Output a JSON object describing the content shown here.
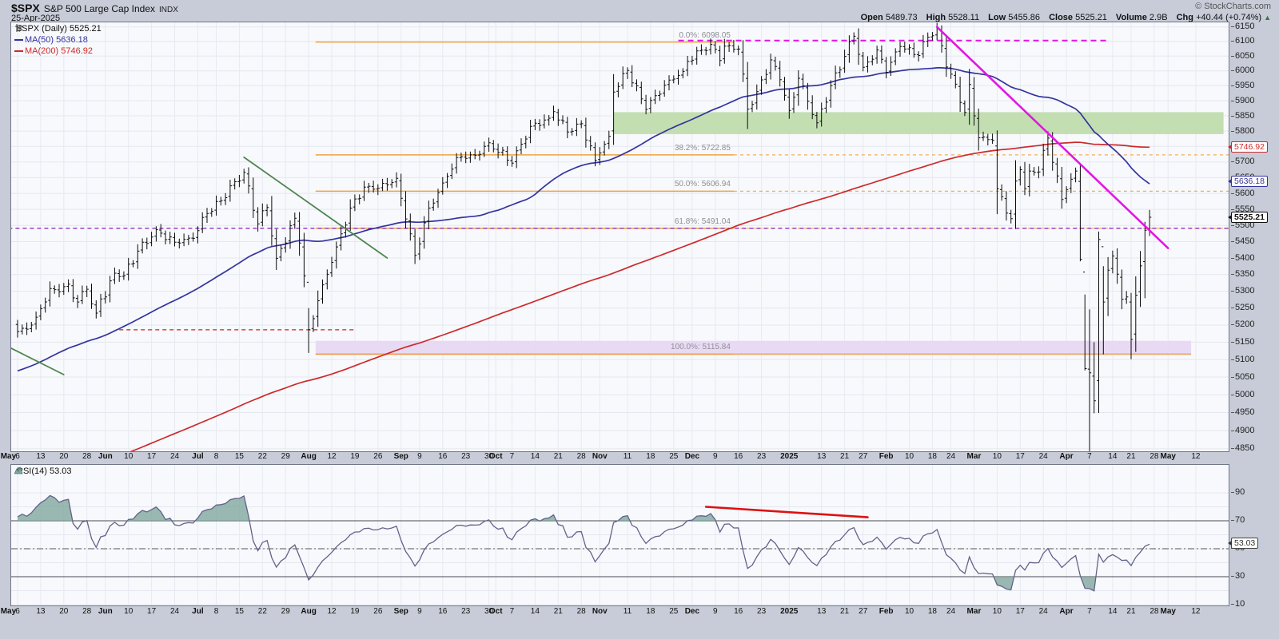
{
  "header": {
    "symbol": "$SPX",
    "name": "S&P 500 Large Cap Index",
    "exchange": "INDX",
    "date": "25-Apr-2025",
    "copyright": "© StockCharts.com",
    "quote": {
      "open_label": "Open",
      "open": "5489.73",
      "high_label": "High",
      "high": "5528.11",
      "low_label": "Low",
      "low": "5455.86",
      "close_label": "Close",
      "close": "5525.21",
      "volume_label": "Volume",
      "volume": "2.9B",
      "chg_label": "Chg",
      "chg": "+40.44 (+0.74%)",
      "arrow_up_glyph": "▲"
    }
  },
  "main_chart": {
    "legend": {
      "series": "$SPX (Daily) 5525.21",
      "ma50": "MA(50) 5636.18",
      "ma200": "MA(200) 5746.92"
    },
    "price_tags": [
      {
        "text": "5746.92",
        "value": 5746.92,
        "color": "#cc2a2a",
        "bold": false
      },
      {
        "text": "5636.18",
        "value": 5636.18,
        "color": "#34349e",
        "bold": false
      },
      {
        "text": "5525.21",
        "value": 5525.21,
        "color": "#111111",
        "bold": true
      }
    ],
    "colors": {
      "bars": "#0a0a0a",
      "ma50": "#34349e",
      "ma200": "#cc2a2a",
      "fib": "#efa23f",
      "magenta": "#e316e3",
      "purple": "#8e2fbb",
      "green_trend": "#4e8550",
      "red_dash": "#cc2222",
      "green_band": "#bcdcaa",
      "lavender_band": "#e7d6f3"
    }
  },
  "rsi_panel": {
    "legend": "RSI(14) 53.03",
    "tag": "53.03",
    "value": 53.03,
    "axis_labels": [
      90,
      70,
      50,
      30,
      10
    ],
    "overbought": 70,
    "oversold": 30,
    "line_color": "#62628a",
    "fill_color": "#7fa79e",
    "trendline_color": "#dd1111"
  },
  "x_axis": {
    "ticks": [
      [
        "May",
        -2,
        1
      ],
      [
        "6",
        0,
        0
      ],
      [
        "13",
        5,
        0
      ],
      [
        "20",
        10,
        0
      ],
      [
        "28",
        15,
        0
      ],
      [
        "Jun",
        19,
        1
      ],
      [
        "10",
        24,
        0
      ],
      [
        "17",
        29,
        0
      ],
      [
        "24",
        34,
        0
      ],
      [
        "Jul",
        39,
        1
      ],
      [
        "8",
        43,
        0
      ],
      [
        "15",
        48,
        0
      ],
      [
        "22",
        53,
        0
      ],
      [
        "29",
        58,
        0
      ],
      [
        "Aug",
        63,
        1
      ],
      [
        "12",
        68,
        0
      ],
      [
        "19",
        73,
        0
      ],
      [
        "26",
        78,
        0
      ],
      [
        "Sep",
        83,
        1
      ],
      [
        "9",
        87,
        0
      ],
      [
        "16",
        92,
        0
      ],
      [
        "23",
        97,
        0
      ],
      [
        "30",
        102,
        0
      ],
      [
        "Oct",
        103.5,
        1
      ],
      [
        "7",
        107,
        0
      ],
      [
        "14",
        112,
        0
      ],
      [
        "21",
        117,
        0
      ],
      [
        "28",
        122,
        0
      ],
      [
        "Nov",
        126,
        1
      ],
      [
        "11",
        132,
        0
      ],
      [
        "18",
        137,
        0
      ],
      [
        "25",
        142,
        0
      ],
      [
        "Dec",
        146,
        1
      ],
      [
        "9",
        151,
        0
      ],
      [
        "16",
        156,
        0
      ],
      [
        "23",
        161,
        0
      ],
      [
        "2025",
        167,
        1
      ],
      [
        "13",
        174,
        0
      ],
      [
        "21",
        179,
        0
      ],
      [
        "27",
        183,
        0
      ],
      [
        "Feb",
        188,
        1
      ],
      [
        "10",
        193,
        0
      ],
      [
        "18",
        198,
        0
      ],
      [
        "24",
        202,
        0
      ],
      [
        "Mar",
        207,
        1
      ],
      [
        "10",
        212,
        0
      ],
      [
        "17",
        217,
        0
      ],
      [
        "24",
        222,
        0
      ],
      [
        "Apr",
        227,
        1
      ],
      [
        "7",
        232,
        0
      ],
      [
        "14",
        237,
        0
      ],
      [
        "21",
        241,
        0
      ],
      [
        "28",
        246,
        0
      ],
      [
        "May",
        249,
        1
      ],
      [
        "12",
        255,
        0
      ]
    ]
  },
  "chart_data": {
    "type": "candlestick",
    "title": "$SPX S&P 500 Large Cap Index (Daily)",
    "y_axis": {
      "min": 4850,
      "max": 6150,
      "step": 50,
      "scale": "log"
    },
    "close_anchors": [
      [
        0,
        5181
      ],
      [
        2,
        5188
      ],
      [
        4,
        5223
      ],
      [
        7,
        5308
      ],
      [
        9,
        5298
      ],
      [
        11,
        5321
      ],
      [
        13,
        5268
      ],
      [
        15,
        5306
      ],
      [
        17,
        5235
      ],
      [
        18,
        5277
      ],
      [
        19,
        5283
      ],
      [
        21,
        5354
      ],
      [
        23,
        5347
      ],
      [
        26,
        5421
      ],
      [
        30,
        5487
      ],
      [
        34,
        5448
      ],
      [
        38,
        5460
      ],
      [
        41,
        5537
      ],
      [
        44,
        5577
      ],
      [
        49,
        5667
      ],
      [
        52,
        5505
      ],
      [
        54,
        5556
      ],
      [
        56,
        5399
      ],
      [
        60,
        5522
      ],
      [
        61,
        5446
      ],
      [
        62,
        5346
      ],
      [
        63,
        5186
      ],
      [
        66,
        5319
      ],
      [
        69,
        5434
      ],
      [
        72,
        5554
      ],
      [
        75,
        5620
      ],
      [
        78,
        5616
      ],
      [
        82,
        5648
      ],
      [
        84,
        5520
      ],
      [
        86,
        5408
      ],
      [
        89,
        5554
      ],
      [
        92,
        5633
      ],
      [
        95,
        5714
      ],
      [
        99,
        5722
      ],
      [
        102,
        5762
      ],
      [
        107,
        5696
      ],
      [
        111,
        5815
      ],
      [
        115,
        5842
      ],
      [
        116,
        5864
      ],
      [
        119,
        5797
      ],
      [
        122,
        5824
      ],
      [
        125,
        5705
      ],
      [
        126,
        5729
      ],
      [
        128,
        5783
      ],
      [
        129,
        5929
      ],
      [
        132,
        6001
      ],
      [
        136,
        5871
      ],
      [
        138,
        5917
      ],
      [
        141,
        5969
      ],
      [
        144,
        5998
      ],
      [
        145,
        6032
      ],
      [
        150,
        6090
      ],
      [
        152,
        6035
      ],
      [
        153,
        6084
      ],
      [
        156,
        6074
      ],
      [
        158,
        5872
      ],
      [
        160,
        5930
      ],
      [
        163,
        6037
      ],
      [
        165,
        5970
      ],
      [
        167,
        5868
      ],
      [
        169,
        5975
      ],
      [
        173,
        5827
      ],
      [
        176,
        5950
      ],
      [
        179,
        6049
      ],
      [
        181,
        6118
      ],
      [
        183,
        6012
      ],
      [
        186,
        6071
      ],
      [
        188,
        5995
      ],
      [
        191,
        6083
      ],
      [
        195,
        6052
      ],
      [
        197,
        6115
      ],
      [
        199,
        6144
      ],
      [
        201,
        6013
      ],
      [
        203,
        5955
      ],
      [
        205,
        5861
      ],
      [
        206,
        5954
      ],
      [
        207,
        5850
      ],
      [
        208,
        5778
      ],
      [
        211,
        5770
      ],
      [
        212,
        5615
      ],
      [
        215,
        5521
      ],
      [
        216,
        5639
      ],
      [
        217,
        5675
      ],
      [
        218,
        5615
      ],
      [
        219,
        5671
      ],
      [
        221,
        5668
      ],
      [
        223,
        5777
      ],
      [
        226,
        5581
      ],
      [
        227,
        5612
      ],
      [
        229,
        5671
      ],
      [
        230,
        5396
      ],
      [
        231,
        5074
      ],
      [
        232,
        5062
      ],
      [
        233,
        4983
      ],
      [
        234,
        5457
      ],
      [
        235,
        5268
      ],
      [
        236,
        5363
      ],
      [
        237,
        5406
      ],
      [
        239,
        5276
      ],
      [
        240,
        5283
      ],
      [
        241,
        5158
      ],
      [
        242,
        5288
      ],
      [
        243,
        5376
      ],
      [
        244,
        5485
      ],
      [
        245,
        5525.21
      ]
    ],
    "hl_overrides": {
      "63": [
        5250,
        5119
      ],
      "230": [
        5695,
        5390
      ],
      "231": [
        5290,
        5069
      ],
      "232": [
        5246,
        4835
      ],
      "233": [
        5150,
        4948
      ],
      "234": [
        5481,
        4949
      ],
      "235": [
        5375,
        5115
      ],
      "241": [
        5295,
        5101
      ],
      "244": [
        5511,
        5279
      ]
    },
    "moving_averages": [
      {
        "name": "MA(50)",
        "period": 50,
        "last": 5636.18
      },
      {
        "name": "MA(200)",
        "period": 200,
        "last": 5746.92
      }
    ],
    "fibonacci": {
      "d1": 64.5,
      "d2": 155,
      "levels": [
        {
          "label": "0.0%: 6098.05",
          "pct": 0.0,
          "value": 6098.05,
          "ext": "none"
        },
        {
          "label": "38.2%: 5722.85",
          "pct": 38.2,
          "value": 5722.85,
          "ext": "dash"
        },
        {
          "label": "50.0%: 5606.94",
          "pct": 50.0,
          "value": 5606.94,
          "ext": "dash"
        },
        {
          "label": "61.8%: 5491.04",
          "pct": 61.8,
          "value": 5491.04,
          "ext": "dash"
        },
        {
          "label": "100.0%: 5115.84",
          "pct": 100.0,
          "value": 5115.84,
          "ext": "solid"
        }
      ]
    },
    "annotations": [
      {
        "name": "resistance-dashed-magenta",
        "kind": "hline",
        "price": 6103,
        "d1": 143,
        "d2": 236,
        "color": "#e316e3",
        "dash": "7 5",
        "width": 2
      },
      {
        "name": "level-5491-dashed-purple",
        "kind": "hline",
        "price": 5491.04,
        "d1": -2,
        "d2": 263,
        "color": "#8e2fbb",
        "dash": "5 4",
        "width": 1.4
      },
      {
        "name": "support-dashed-red",
        "kind": "hline",
        "price": 5186,
        "d1": 22,
        "d2": 73,
        "color": "#cc2222",
        "dash": "5 4",
        "width": 1.3
      },
      {
        "name": "zone-green",
        "kind": "band",
        "p1": 5862,
        "p2": 5790,
        "d1": 129,
        "d2": 261,
        "color": "#bcdcaa"
      },
      {
        "name": "zone-lavender",
        "kind": "band",
        "p1": 5154,
        "p2": 5112,
        "d1": 64.5,
        "d2": 254,
        "color": "#e7d6f3"
      },
      {
        "name": "downtrend-green-may",
        "kind": "line",
        "d1": -4,
        "p1": 5150,
        "d2": 10,
        "p2": 5057,
        "color": "#4e8550",
        "width": 1.8
      },
      {
        "name": "downtrend-green-jul",
        "kind": "line",
        "d1": 49,
        "p1": 5715,
        "d2": 80,
        "p2": 5400,
        "color": "#4e8550",
        "width": 1.8
      },
      {
        "name": "downtrend-magenta",
        "kind": "line",
        "d1": 199,
        "p1": 6150,
        "d2": 249,
        "p2": 5430,
        "color": "#e316e3",
        "width": 2.6
      }
    ],
    "rsi": {
      "period": 14,
      "value": 53.03,
      "trendline": {
        "d1": 149,
        "r1": 80,
        "d2": 184,
        "r2": 72.5
      }
    }
  }
}
